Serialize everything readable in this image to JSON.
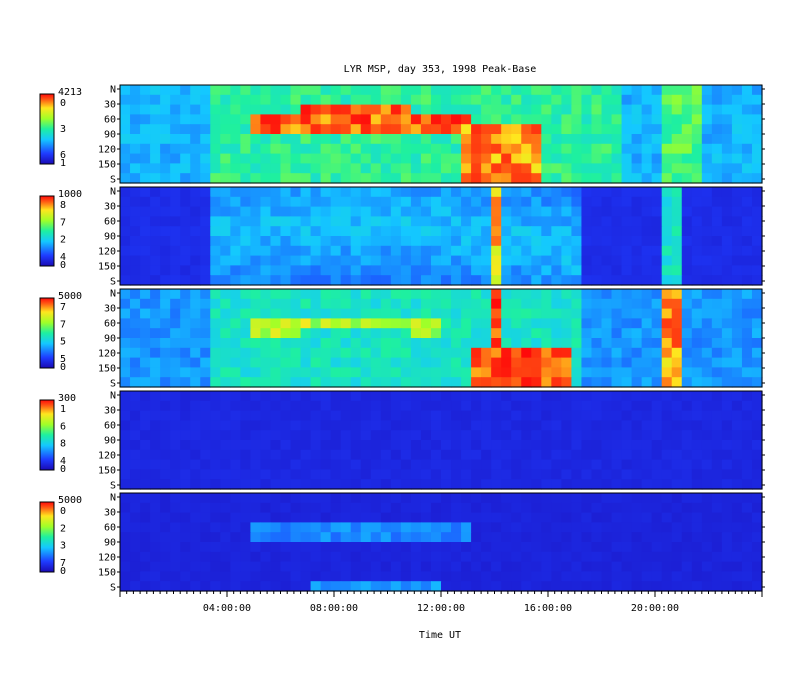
{
  "chart_data": {
    "type": "heatmap",
    "title": "LYR MSP, day 353, 1998 Peak-Base",
    "xlabel": "Time UT",
    "x_tick_labels": [
      "04:00:00",
      "08:00:00",
      "12:00:00",
      "16:00:00",
      "20:00:00"
    ],
    "x_range_hours": [
      0,
      24
    ],
    "y_tick_labels": [
      "N",
      "30",
      "60",
      "90",
      "120",
      "150",
      "S"
    ],
    "y_range_degrees": [
      0,
      180
    ],
    "panels": [
      {
        "colorbar_max": "4213",
        "colorbar_digits": [
          "0",
          "3",
          "6"
        ],
        "colorbar_min": "1",
        "intensity_level": 0.9
      },
      {
        "colorbar_max": "1000",
        "colorbar_digits": [
          "8",
          "7",
          "2",
          "4"
        ],
        "colorbar_min": "0",
        "intensity_level": 0.55
      },
      {
        "colorbar_max": "5000",
        "colorbar_digits": [
          "7",
          "7",
          "5",
          "5"
        ],
        "colorbar_min": "0",
        "intensity_level": 0.85
      },
      {
        "colorbar_max": "300",
        "colorbar_digits": [
          "1",
          "6",
          "8",
          "4"
        ],
        "colorbar_min": "0",
        "intensity_level": 0.25
      },
      {
        "colorbar_max": "5000",
        "colorbar_digits": [
          "0",
          "2",
          "3",
          "7"
        ],
        "colorbar_min": "0",
        "intensity_level": 0.35
      }
    ]
  },
  "colors": {
    "background": "#ffffff",
    "axis": "#000000",
    "colormap": [
      "#1a0ab4",
      "#1e3cff",
      "#14c8ff",
      "#1ef0a0",
      "#a0ff28",
      "#ffe61e",
      "#ff5a14",
      "#ff0a0a"
    ]
  }
}
